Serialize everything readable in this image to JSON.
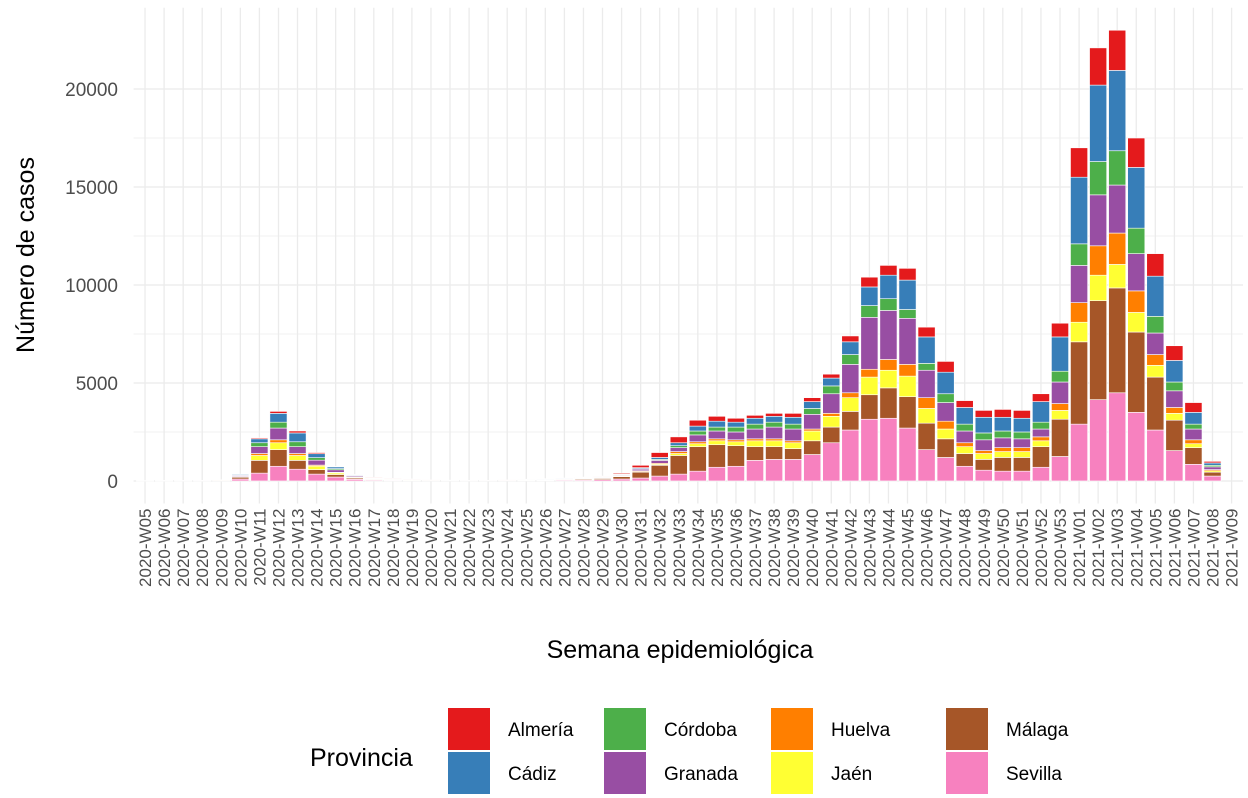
{
  "chart_data": {
    "type": "stacked_bar",
    "x_label": "Semana epidemiológica",
    "y_label": "Número de casos",
    "legend_title": "Provincia",
    "legend_position": "bottom",
    "grid": true,
    "ylim": [
      -1150,
      24150
    ],
    "yticks": [
      0,
      5000,
      10000,
      15000,
      20000
    ],
    "categories": [
      "2020-W05",
      "2020-W06",
      "2020-W07",
      "2020-W08",
      "2020-W09",
      "2020-W10",
      "2020-W11",
      "2020-W12",
      "2020-W13",
      "2020-W14",
      "2020-W15",
      "2020-W16",
      "2020-W17",
      "2020-W18",
      "2020-W19",
      "2020-W20",
      "2020-W21",
      "2020-W22",
      "2020-W23",
      "2020-W24",
      "2020-W25",
      "2020-W26",
      "2020-W27",
      "2020-W28",
      "2020-W29",
      "2020-W30",
      "2020-W31",
      "2020-W32",
      "2020-W33",
      "2020-W34",
      "2020-W35",
      "2020-W36",
      "2020-W37",
      "2020-W38",
      "2020-W39",
      "2020-W40",
      "2020-W41",
      "2020-W42",
      "2020-W43",
      "2020-W44",
      "2020-W45",
      "2020-W46",
      "2020-W47",
      "2020-W48",
      "2020-W49",
      "2020-W50",
      "2020-W51",
      "2020-W52",
      "2020-W53",
      "2021-W01",
      "2021-W02",
      "2021-W03",
      "2021-W04",
      "2021-W05",
      "2021-W06",
      "2021-W07",
      "2021-W08",
      "2021-W09"
    ],
    "series": [
      {
        "name": "Almería",
        "color": "#E41A1C",
        "values": [
          1,
          1,
          1,
          2,
          2,
          10,
          50,
          100,
          100,
          60,
          30,
          15,
          8,
          5,
          5,
          3,
          2,
          2,
          2,
          3,
          5,
          10,
          10,
          20,
          30,
          50,
          120,
          250,
          300,
          300,
          250,
          200,
          150,
          150,
          200,
          200,
          200,
          300,
          500,
          500,
          600,
          500,
          550,
          350,
          350,
          400,
          400,
          400,
          700,
          1500,
          1900,
          2050,
          1500,
          1150,
          750,
          500,
          80,
          0
        ]
      },
      {
        "name": "Cádiz",
        "color": "#377EB8",
        "values": [
          2,
          3,
          3,
          4,
          5,
          40,
          200,
          450,
          450,
          200,
          90,
          35,
          20,
          15,
          10,
          7,
          6,
          5,
          5,
          8,
          10,
          15,
          20,
          20,
          20,
          30,
          50,
          100,
          150,
          250,
          300,
          250,
          300,
          300,
          350,
          350,
          400,
          650,
          950,
          1200,
          1500,
          1350,
          1100,
          850,
          800,
          700,
          700,
          1050,
          1750,
          3400,
          3900,
          4100,
          3100,
          2050,
          1100,
          600,
          120,
          0
        ]
      },
      {
        "name": "Córdoba",
        "color": "#4DAF4A",
        "values": [
          1,
          2,
          2,
          2,
          3,
          20,
          200,
          300,
          250,
          130,
          60,
          30,
          15,
          10,
          8,
          4,
          3,
          2,
          2,
          3,
          5,
          10,
          10,
          10,
          10,
          20,
          30,
          50,
          100,
          200,
          200,
          250,
          250,
          250,
          250,
          300,
          400,
          500,
          600,
          600,
          450,
          350,
          450,
          350,
          350,
          350,
          350,
          350,
          550,
          1100,
          1700,
          1750,
          1300,
          850,
          450,
          250,
          80,
          0
        ]
      },
      {
        "name": "Granada",
        "color": "#984EA3",
        "values": [
          2,
          3,
          3,
          4,
          5,
          50,
          350,
          600,
          350,
          250,
          130,
          55,
          30,
          20,
          15,
          8,
          6,
          5,
          4,
          6,
          10,
          10,
          15,
          20,
          30,
          40,
          80,
          150,
          200,
          350,
          400,
          400,
          500,
          600,
          600,
          750,
          1000,
          1450,
          2650,
          2500,
          2350,
          1400,
          950,
          600,
          550,
          500,
          450,
          400,
          1100,
          1900,
          2600,
          2450,
          1900,
          1100,
          850,
          550,
          140,
          0
        ]
      },
      {
        "name": "Huelva",
        "color": "#FF7F00",
        "values": [
          2,
          3,
          3,
          8,
          25,
          20,
          100,
          150,
          100,
          50,
          30,
          15,
          10,
          8,
          5,
          3,
          3,
          3,
          3,
          5,
          10,
          15,
          15,
          20,
          20,
          20,
          40,
          50,
          100,
          100,
          100,
          100,
          100,
          100,
          100,
          100,
          150,
          250,
          400,
          550,
          600,
          550,
          400,
          200,
          150,
          200,
          200,
          200,
          350,
          1000,
          1500,
          1600,
          1100,
          550,
          300,
          200,
          60,
          0
        ]
      },
      {
        "name": "Jaén",
        "color": "#FFFF33",
        "values": [
          2,
          2,
          2,
          2,
          2,
          20,
          250,
          350,
          250,
          180,
          80,
          35,
          20,
          15,
          12,
          4,
          3,
          2,
          2,
          3,
          5,
          5,
          10,
          10,
          10,
          20,
          30,
          50,
          100,
          150,
          200,
          200,
          300,
          300,
          300,
          500,
          550,
          700,
          900,
          900,
          1050,
          750,
          500,
          350,
          300,
          300,
          300,
          300,
          450,
          1000,
          1300,
          1200,
          1000,
          600,
          350,
          200,
          70,
          0
        ]
      },
      {
        "name": "Málaga",
        "color": "#A65628",
        "values": [
          2,
          3,
          3,
          4,
          8,
          90,
          650,
          850,
          450,
          230,
          130,
          60,
          32,
          25,
          20,
          9,
          7,
          5,
          5,
          10,
          20,
          25,
          30,
          50,
          60,
          120,
          300,
          550,
          950,
          1250,
          1150,
          1050,
          700,
          650,
          550,
          700,
          800,
          950,
          1250,
          1550,
          1600,
          1350,
          950,
          650,
          550,
          700,
          700,
          1050,
          1900,
          4200,
          5050,
          5350,
          4100,
          2700,
          1550,
          850,
          200,
          0
        ]
      },
      {
        "name": "Sevilla",
        "color": "#F781BF",
        "values": [
          3,
          3,
          3,
          4,
          10,
          100,
          400,
          750,
          600,
          350,
          200,
          85,
          45,
          32,
          25,
          12,
          10,
          6,
          7,
          12,
          25,
          30,
          40,
          50,
          70,
          100,
          150,
          250,
          350,
          500,
          700,
          750,
          1050,
          1100,
          1100,
          1350,
          1950,
          2600,
          3150,
          3200,
          2700,
          1600,
          1200,
          750,
          550,
          500,
          500,
          700,
          1250,
          2900,
          4150,
          4500,
          3500,
          2600,
          1550,
          850,
          250,
          0
        ]
      }
    ]
  }
}
